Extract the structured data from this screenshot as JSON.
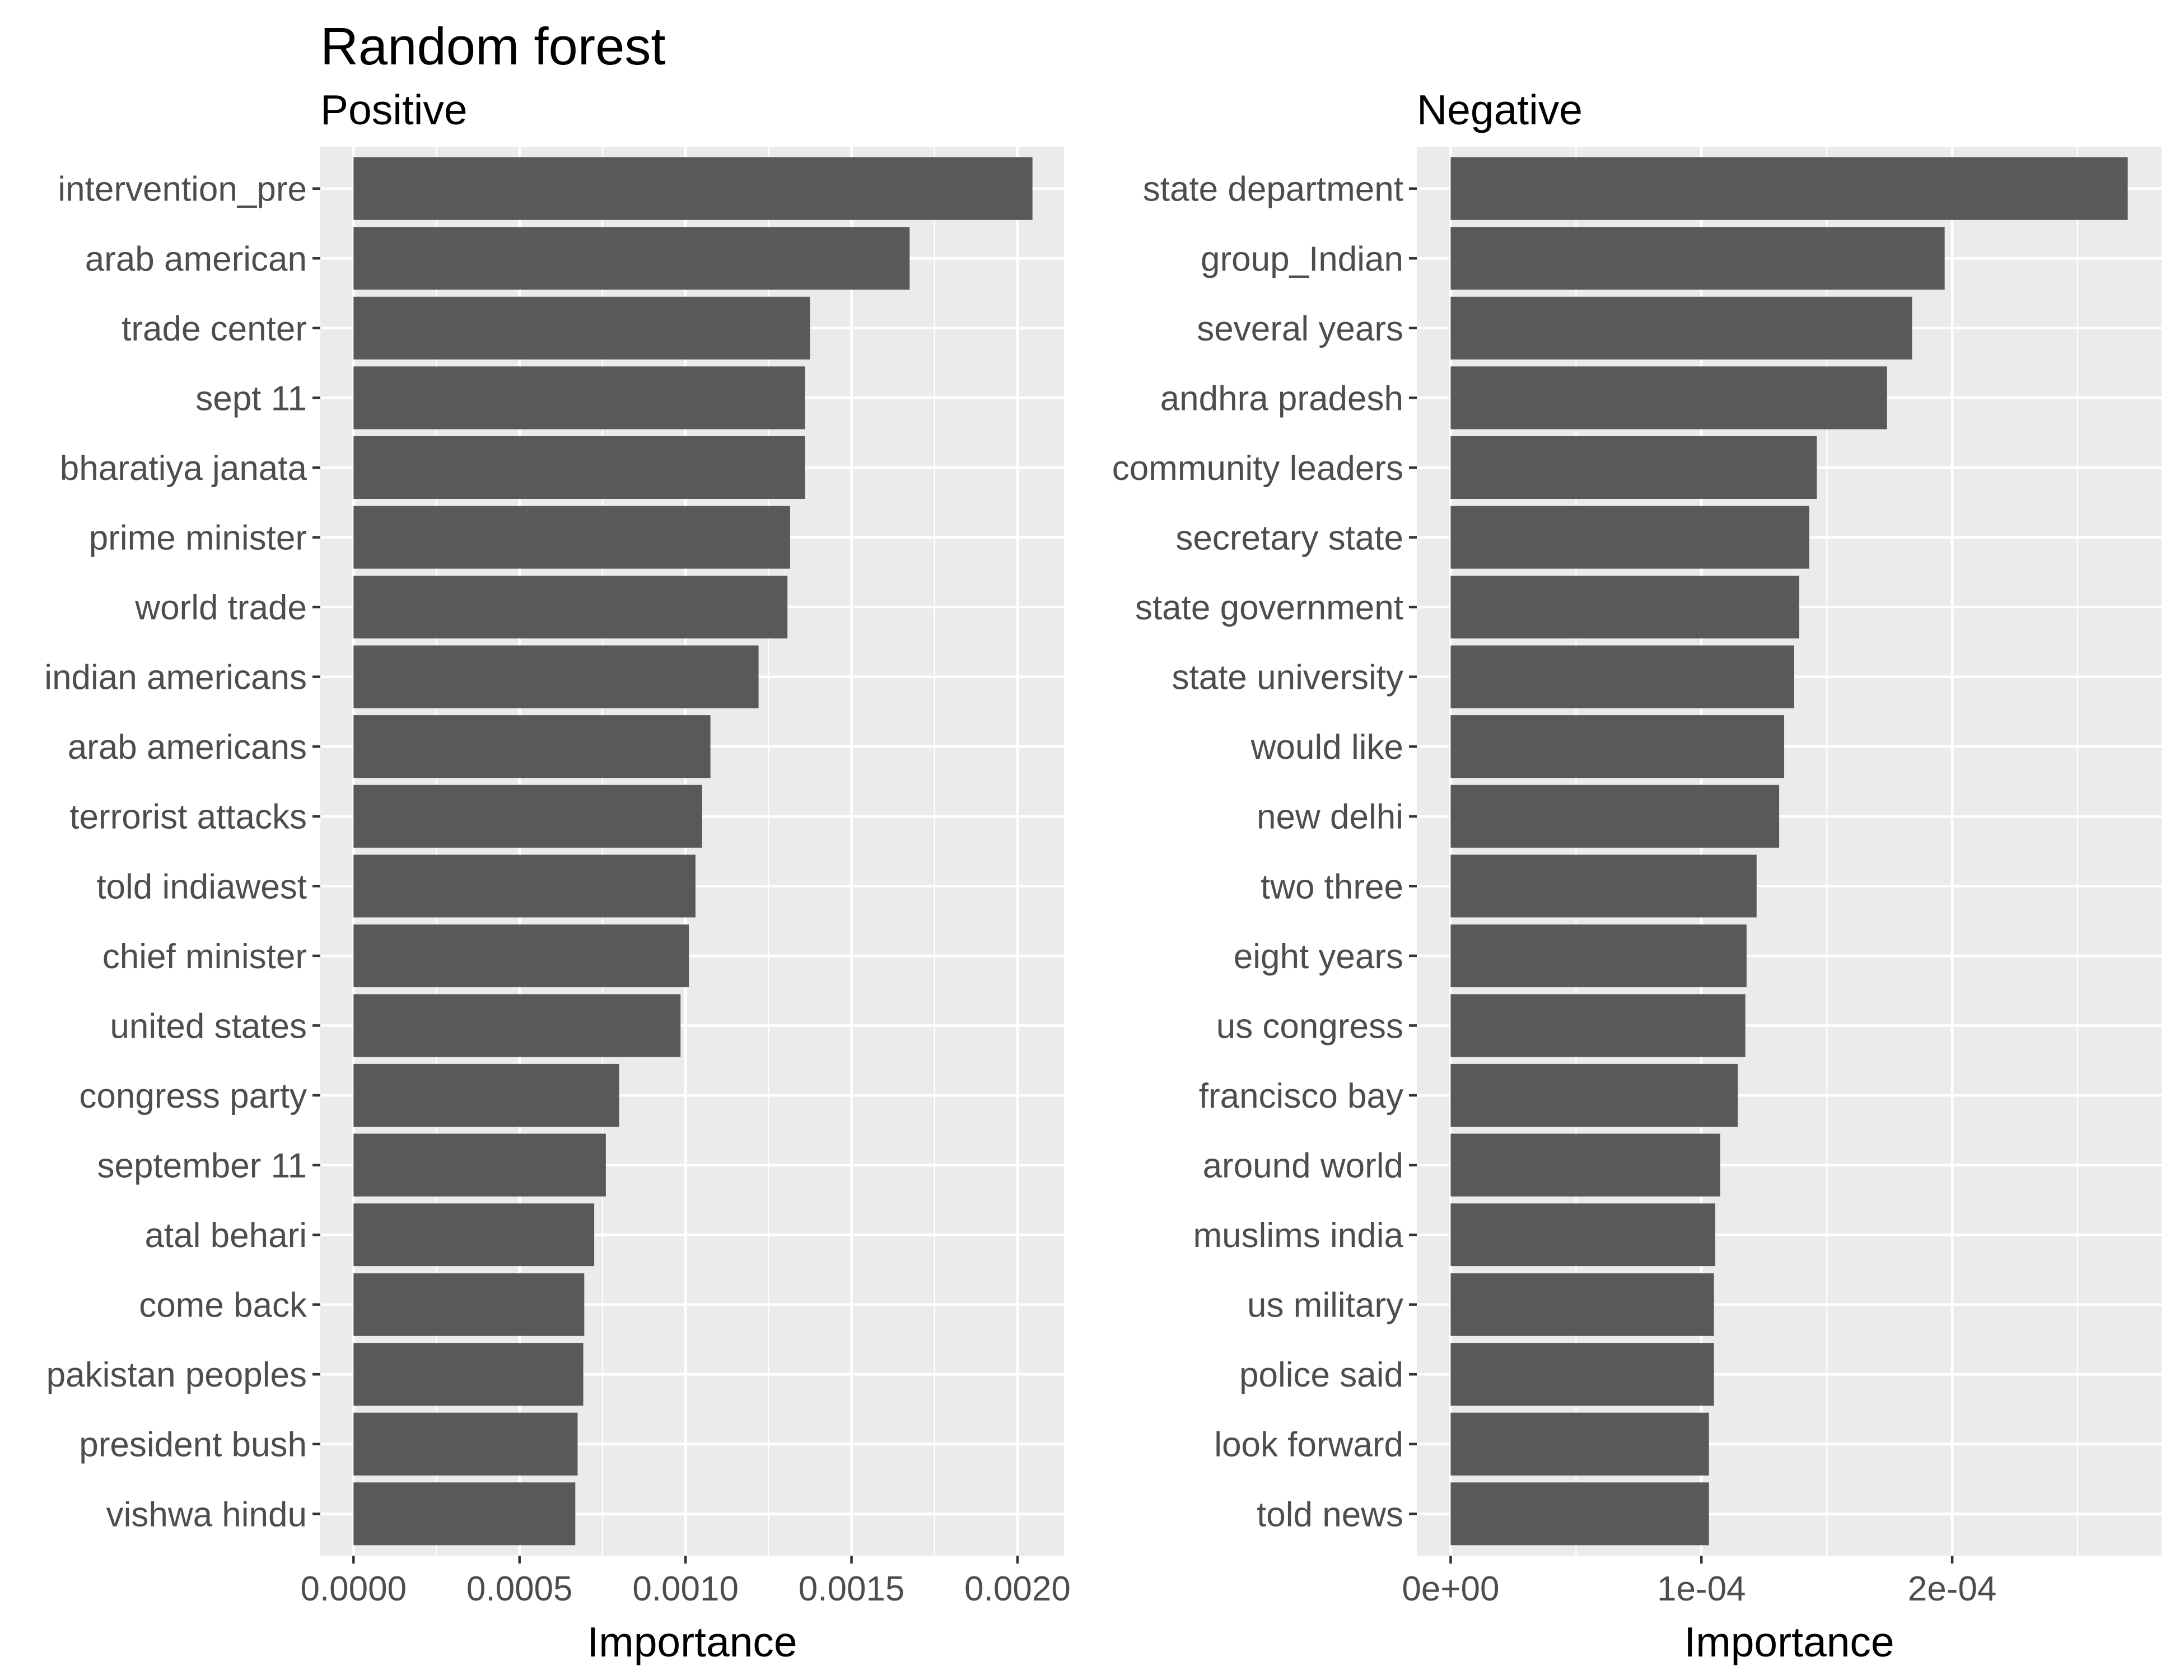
{
  "figure_title": "Random forest",
  "colors": {
    "panel_background": "#EBEBEB",
    "grid": "#FFFFFF",
    "bar_fill": "#595959",
    "tick": "#333333"
  },
  "chart_data": [
    {
      "type": "bar",
      "orientation": "horizontal",
      "title": "Positive",
      "xlabel": "Importance",
      "ylabel": "",
      "xlim": [
        -0.0001,
        0.00214
      ],
      "xticks": [
        0,
        0.0005,
        0.001,
        0.0015,
        0.002
      ],
      "xtick_labels": [
        "0.0000",
        "0.0005",
        "0.0010",
        "0.0015",
        "0.0020"
      ],
      "grid": true,
      "categories": [
        "intervention_pre",
        "arab american",
        "trade center",
        "sept 11",
        "bharatiya janata",
        "prime minister",
        "world trade",
        "indian americans",
        "arab americans",
        "terrorist attacks",
        "told indiawest",
        "chief minister",
        "united states",
        "congress party",
        "september 11",
        "atal behari",
        "come back",
        "pakistan peoples",
        "president bush",
        "vishwa hindu"
      ],
      "values": [
        0.002045,
        0.001675,
        0.001375,
        0.00136,
        0.00136,
        0.001315,
        0.001307,
        0.00122,
        0.001075,
        0.00105,
        0.00103,
        0.00101,
        0.000985,
        0.0008,
        0.00076,
        0.000725,
        0.000695,
        0.000692,
        0.000675,
        0.000668
      ]
    },
    {
      "type": "bar",
      "orientation": "horizontal",
      "title": "Negative",
      "xlabel": "Importance",
      "ylabel": "",
      "xlim": [
        -1.35e-05,
        0.0002835
      ],
      "xticks": [
        0,
        0.0001,
        0.0002
      ],
      "xtick_labels": [
        "0e+00",
        "1e-04",
        "2e-04"
      ],
      "grid": true,
      "categories": [
        "state department",
        "group_Indian",
        "several years",
        "andhra pradesh",
        "community leaders",
        "secretary state",
        "state government",
        "state university",
        "would like",
        "new delhi",
        "two three",
        "eight years",
        "us congress",
        "francisco bay",
        "around world",
        "muslims india",
        "us military",
        "police said",
        "look forward",
        "told news"
      ],
      "values": [
        0.00027,
        0.000197,
        0.000184,
        0.000174,
        0.000146,
        0.000143,
        0.000139,
        0.000137,
        0.000133,
        0.000131,
        0.000122,
        0.000118,
        0.0001175,
        0.0001145,
        0.0001075,
        0.0001055,
        0.000105,
        0.000105,
        0.000103,
        0.000103
      ]
    }
  ]
}
